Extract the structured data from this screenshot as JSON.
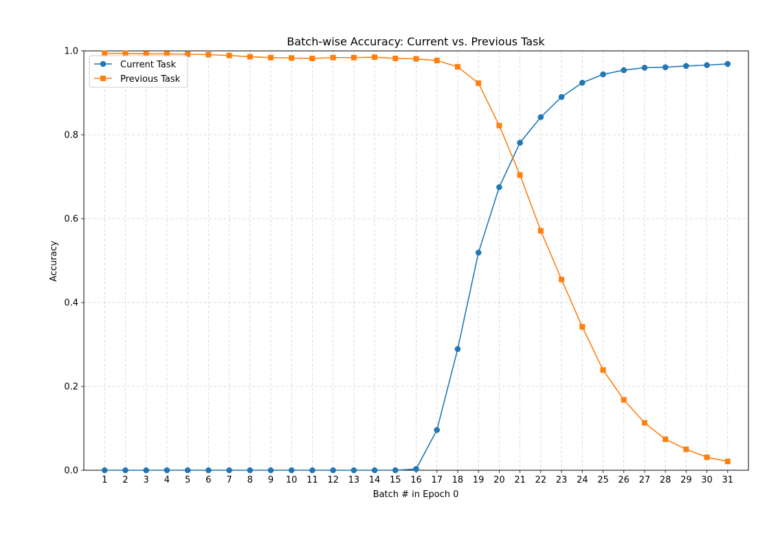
{
  "chart_data": {
    "type": "line",
    "title": "Batch-wise Accuracy: Current vs. Previous Task",
    "xlabel": "Batch # in Epoch 0",
    "ylabel": "Accuracy",
    "ylim": [
      0,
      1.0
    ],
    "xlim": [
      0,
      32
    ],
    "grid": true,
    "legend_position": "top-left",
    "x": [
      1,
      2,
      3,
      4,
      5,
      6,
      7,
      8,
      9,
      10,
      11,
      12,
      13,
      14,
      15,
      16,
      17,
      18,
      19,
      20,
      21,
      22,
      23,
      24,
      25,
      26,
      27,
      28,
      29,
      30,
      31
    ],
    "x_tick_labels": [
      "1",
      "2",
      "3",
      "4",
      "5",
      "6",
      "7",
      "8",
      "9",
      "10",
      "11",
      "12",
      "13",
      "14",
      "15",
      "16",
      "17",
      "18",
      "19",
      "20",
      "21",
      "22",
      "23",
      "24",
      "25",
      "26",
      "27",
      "28",
      "29",
      "30",
      "31"
    ],
    "y_ticks": [
      0.0,
      0.2,
      0.4,
      0.6,
      0.8,
      1.0
    ],
    "y_tick_labels": [
      "0.0",
      "0.2",
      "0.4",
      "0.6",
      "0.8",
      "1.0"
    ],
    "series": [
      {
        "name": "Current Task",
        "color": "#1f77b4",
        "marker": "circle",
        "values": [
          0.0,
          0.0,
          0.0,
          0.0,
          0.0,
          0.0,
          0.0,
          0.0,
          0.0,
          0.0,
          0.0,
          0.0,
          0.0,
          0.0,
          0.0,
          0.003,
          0.096,
          0.289,
          0.519,
          0.675,
          0.781,
          0.842,
          0.89,
          0.924,
          0.944,
          0.954,
          0.96,
          0.961,
          0.964,
          0.966,
          0.969
        ]
      },
      {
        "name": "Previous Task",
        "color": "#ff7f0e",
        "marker": "square",
        "values": [
          0.994,
          0.994,
          0.993,
          0.993,
          0.992,
          0.991,
          0.989,
          0.986,
          0.984,
          0.983,
          0.982,
          0.984,
          0.984,
          0.985,
          0.982,
          0.981,
          0.977,
          0.962,
          0.923,
          0.822,
          0.704,
          0.571,
          0.455,
          0.342,
          0.239,
          0.168,
          0.113,
          0.074,
          0.05,
          0.031,
          0.021
        ]
      }
    ]
  }
}
